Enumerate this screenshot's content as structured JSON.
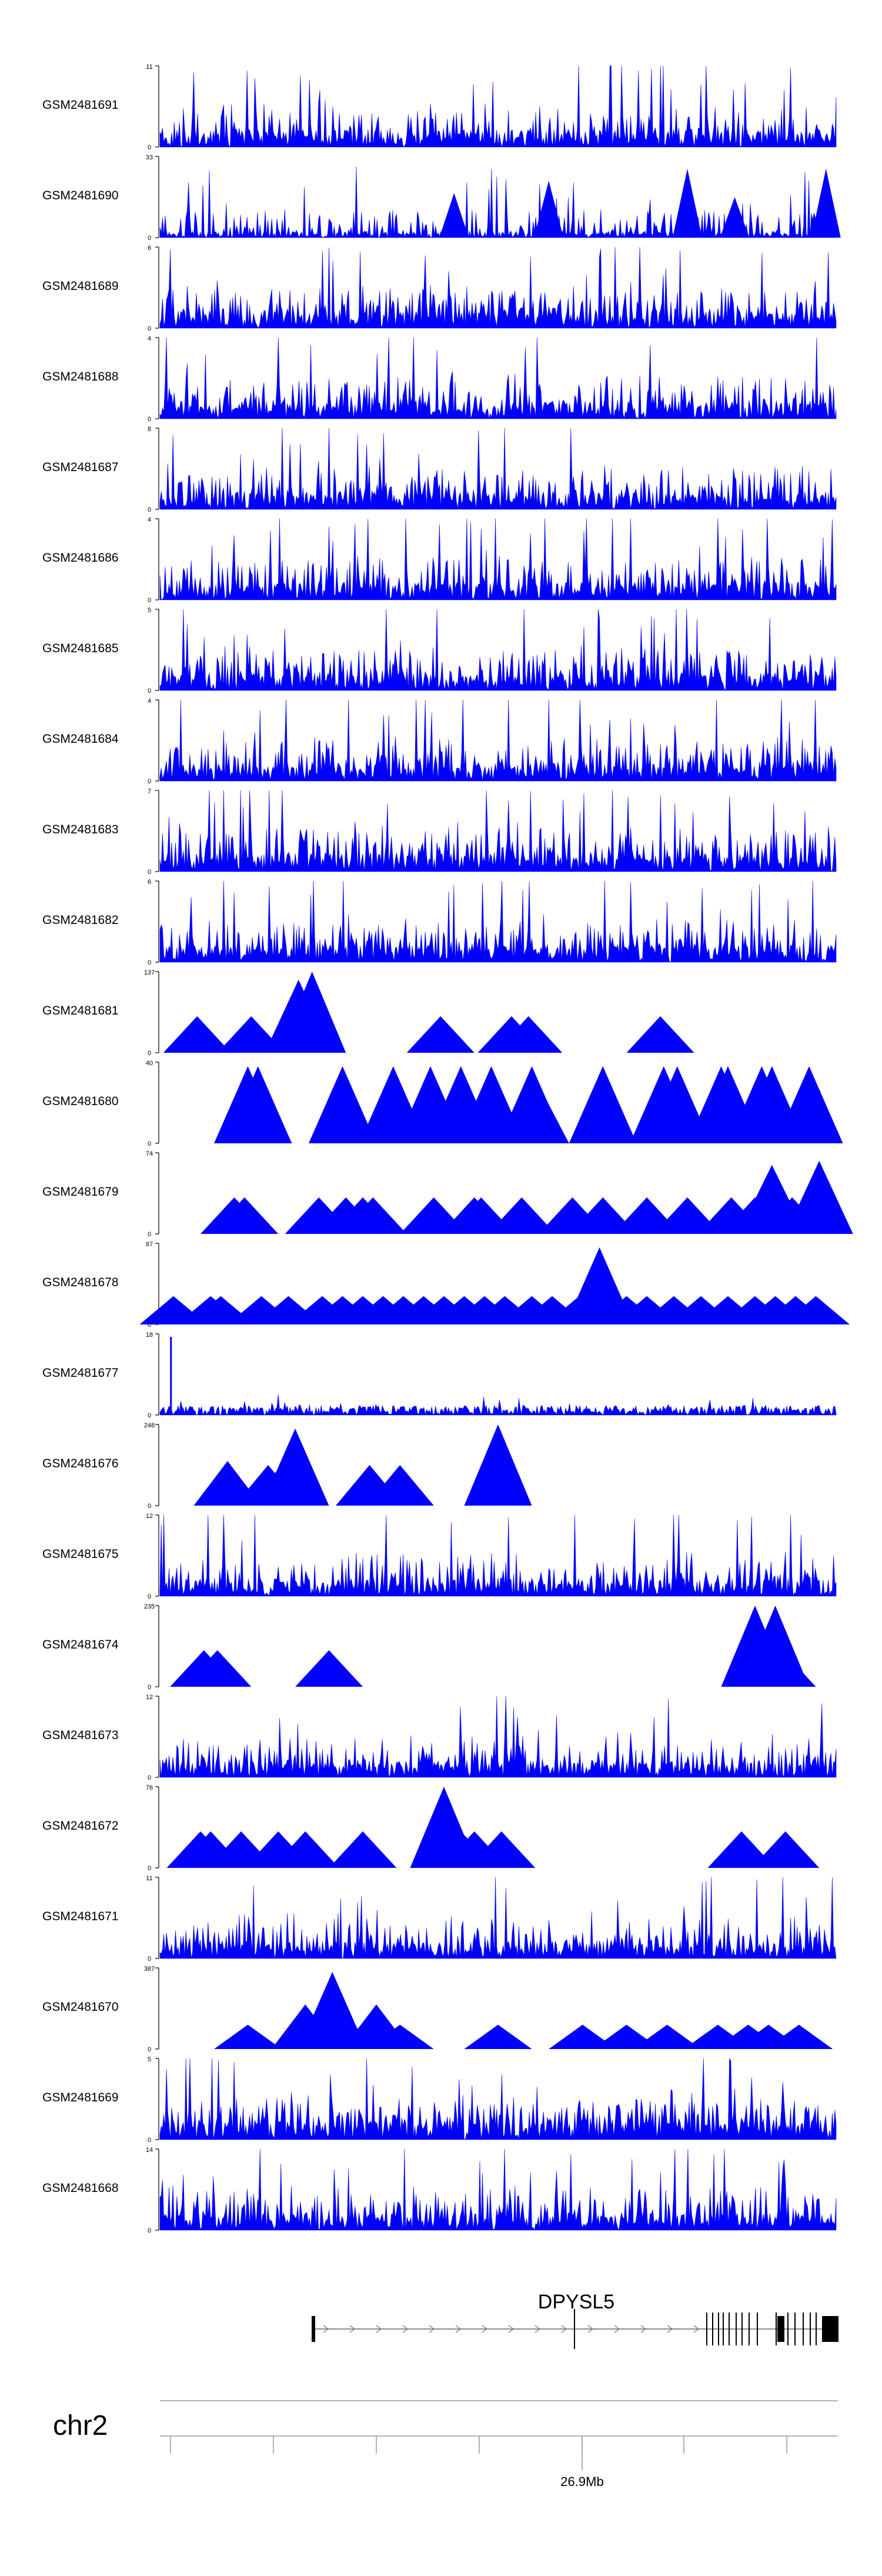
{
  "chart_data": {
    "type": "area",
    "title": "",
    "color": "#0000ff",
    "tracks": [
      {
        "name": "GSM2481691",
        "ymax": "11",
        "ymin": "0",
        "style": "dense",
        "seed": 11,
        "density": 0.35,
        "peak": 0.8
      },
      {
        "name": "GSM2481690",
        "ymax": "33",
        "ymin": "0",
        "style": "mixed",
        "seed": 23,
        "density": 0.25,
        "peak": 0.9
      },
      {
        "name": "GSM2481689",
        "ymax": "6",
        "ymin": "0",
        "style": "dense",
        "seed": 37,
        "density": 0.45,
        "peak": 0.7
      },
      {
        "name": "GSM2481688",
        "ymax": "4",
        "ymin": "0",
        "style": "dense",
        "seed": 41,
        "density": 0.45,
        "peak": 0.8
      },
      {
        "name": "GSM2481687",
        "ymax": "8",
        "ymin": "0",
        "style": "dense",
        "seed": 53,
        "density": 0.4,
        "peak": 0.7
      },
      {
        "name": "GSM2481686",
        "ymax": "4",
        "ymin": "0",
        "style": "dense",
        "seed": 67,
        "density": 0.45,
        "peak": 0.9
      },
      {
        "name": "GSM2481685",
        "ymax": "5",
        "ymin": "0",
        "style": "dense",
        "seed": 71,
        "density": 0.5,
        "peak": 0.9
      },
      {
        "name": "GSM2481684",
        "ymax": "4",
        "ymin": "0",
        "style": "dense",
        "seed": 83,
        "density": 0.45,
        "peak": 0.9
      },
      {
        "name": "GSM2481683",
        "ymax": "7",
        "ymin": "0",
        "style": "dense",
        "seed": 97,
        "density": 0.45,
        "peak": 0.8
      },
      {
        "name": "GSM2481682",
        "ymax": "6",
        "ymin": "0",
        "style": "dense",
        "seed": 101,
        "density": 0.45,
        "peak": 0.9
      },
      {
        "name": "GSM2481681",
        "ymax": "137",
        "ymin": "0",
        "style": "sparse",
        "peaks": [
          [
            0.055,
            0.45
          ],
          [
            0.135,
            0.45
          ],
          [
            0.205,
            0.9
          ],
          [
            0.225,
            1.0
          ],
          [
            0.415,
            0.45
          ],
          [
            0.52,
            0.45
          ],
          [
            0.545,
            0.45
          ],
          [
            0.74,
            0.45
          ]
        ]
      },
      {
        "name": "GSM2481680",
        "ymax": "40",
        "ymin": "0",
        "style": "sparse",
        "peaks": [
          [
            0.13,
            0.95
          ],
          [
            0.135,
            0.7
          ],
          [
            0.145,
            0.95
          ],
          [
            0.27,
            0.95
          ],
          [
            0.345,
            0.95
          ],
          [
            0.4,
            0.95
          ],
          [
            0.445,
            0.95
          ],
          [
            0.49,
            0.95
          ],
          [
            0.55,
            0.95
          ],
          [
            0.555,
            0.8
          ],
          [
            0.655,
            0.95
          ],
          [
            0.745,
            0.95
          ],
          [
            0.765,
            0.95
          ],
          [
            0.83,
            0.95
          ],
          [
            0.84,
            0.95
          ],
          [
            0.89,
            0.95
          ],
          [
            0.905,
            0.95
          ],
          [
            0.96,
            0.95
          ]
        ]
      },
      {
        "name": "GSM2481679",
        "ymax": "74",
        "ymin": "0",
        "style": "sparse",
        "peaks": [
          [
            0.11,
            0.45
          ],
          [
            0.125,
            0.45
          ],
          [
            0.235,
            0.45
          ],
          [
            0.275,
            0.45
          ],
          [
            0.3,
            0.45
          ],
          [
            0.315,
            0.45
          ],
          [
            0.405,
            0.45
          ],
          [
            0.465,
            0.45
          ],
          [
            0.475,
            0.45
          ],
          [
            0.535,
            0.45
          ],
          [
            0.61,
            0.45
          ],
          [
            0.655,
            0.45
          ],
          [
            0.72,
            0.45
          ],
          [
            0.78,
            0.45
          ],
          [
            0.845,
            0.45
          ],
          [
            0.88,
            0.45
          ],
          [
            0.905,
            0.85
          ],
          [
            0.935,
            0.45
          ],
          [
            0.975,
            0.9
          ]
        ]
      },
      {
        "name": "GSM2481678",
        "ymax": "87",
        "ymin": "0",
        "style": "sparse",
        "peaks": [
          [
            0.02,
            0.35
          ],
          [
            0.075,
            0.35
          ],
          [
            0.09,
            0.35
          ],
          [
            0.15,
            0.35
          ],
          [
            0.19,
            0.35
          ],
          [
            0.24,
            0.35
          ],
          [
            0.27,
            0.35
          ],
          [
            0.3,
            0.35
          ],
          [
            0.33,
            0.35
          ],
          [
            0.36,
            0.35
          ],
          [
            0.39,
            0.35
          ],
          [
            0.42,
            0.35
          ],
          [
            0.45,
            0.35
          ],
          [
            0.48,
            0.35
          ],
          [
            0.51,
            0.35
          ],
          [
            0.55,
            0.35
          ],
          [
            0.58,
            0.35
          ],
          [
            0.62,
            0.35
          ],
          [
            0.65,
            0.95
          ],
          [
            0.69,
            0.35
          ],
          [
            0.72,
            0.35
          ],
          [
            0.76,
            0.35
          ],
          [
            0.8,
            0.35
          ],
          [
            0.84,
            0.35
          ],
          [
            0.88,
            0.35
          ],
          [
            0.91,
            0.35
          ],
          [
            0.94,
            0.35
          ],
          [
            0.97,
            0.35
          ]
        ]
      },
      {
        "name": "GSM2481677",
        "ymax": "18",
        "ymin": "0",
        "style": "low",
        "seed": 131,
        "density": 0.3,
        "peak": 0.25,
        "spikeAt": 0.015
      },
      {
        "name": "GSM2481676",
        "ymax": "248",
        "ymin": "0",
        "style": "sparse",
        "peaks": [
          [
            0.1,
            0.55
          ],
          [
            0.16,
            0.5
          ],
          [
            0.18,
            0.5
          ],
          [
            0.2,
            0.95
          ],
          [
            0.31,
            0.5
          ],
          [
            0.355,
            0.5
          ],
          [
            0.5,
            1.0
          ]
        ]
      },
      {
        "name": "GSM2481675",
        "ymax": "12",
        "ymin": "0",
        "style": "dense",
        "seed": 149,
        "density": 0.35,
        "peak": 0.85
      },
      {
        "name": "GSM2481674",
        "ymax": "235",
        "ymin": "0",
        "style": "sparse",
        "peaks": [
          [
            0.065,
            0.45
          ],
          [
            0.085,
            0.45
          ],
          [
            0.25,
            0.45
          ],
          [
            0.88,
            1.0
          ],
          [
            0.91,
            1.0
          ],
          [
            0.92,
            0.45
          ]
        ]
      },
      {
        "name": "GSM2481673",
        "ymax": "12",
        "ymin": "0",
        "style": "dense",
        "seed": 163,
        "density": 0.35,
        "peak": 0.75
      },
      {
        "name": "GSM2481672",
        "ymax": "76",
        "ymin": "0",
        "style": "sparse",
        "peaks": [
          [
            0.06,
            0.45
          ],
          [
            0.075,
            0.45
          ],
          [
            0.12,
            0.45
          ],
          [
            0.175,
            0.45
          ],
          [
            0.215,
            0.45
          ],
          [
            0.3,
            0.45
          ],
          [
            0.42,
            1.0
          ],
          [
            0.445,
            0.45
          ],
          [
            0.465,
            0.45
          ],
          [
            0.505,
            0.45
          ],
          [
            0.86,
            0.45
          ],
          [
            0.925,
            0.45
          ]
        ]
      },
      {
        "name": "GSM2481671",
        "ymax": "11",
        "ymin": "0",
        "style": "dense",
        "seed": 179,
        "density": 0.35,
        "peak": 0.85
      },
      {
        "name": "GSM2481670",
        "ymax": "387",
        "ymin": "0",
        "style": "sparse",
        "peaks": [
          [
            0.13,
            0.3
          ],
          [
            0.215,
            0.55
          ],
          [
            0.255,
            0.95
          ],
          [
            0.3,
            0.3
          ],
          [
            0.32,
            0.55
          ],
          [
            0.355,
            0.3
          ],
          [
            0.5,
            0.3
          ],
          [
            0.625,
            0.3
          ],
          [
            0.69,
            0.3
          ],
          [
            0.75,
            0.3
          ],
          [
            0.825,
            0.3
          ],
          [
            0.87,
            0.3
          ],
          [
            0.9,
            0.3
          ],
          [
            0.945,
            0.3
          ]
        ]
      },
      {
        "name": "GSM2481669",
        "ymax": "5",
        "ymin": "0",
        "style": "dense",
        "seed": 191,
        "density": 0.55,
        "peak": 0.9
      },
      {
        "name": "GSM2481668",
        "ymax": "14",
        "ymin": "0",
        "style": "dense",
        "seed": 199,
        "density": 0.4,
        "peak": 0.75
      }
    ],
    "gene": {
      "label": "DPYSL5"
    },
    "chromosome": {
      "label": "chr2",
      "tick_label": "26.9Mb"
    }
  }
}
